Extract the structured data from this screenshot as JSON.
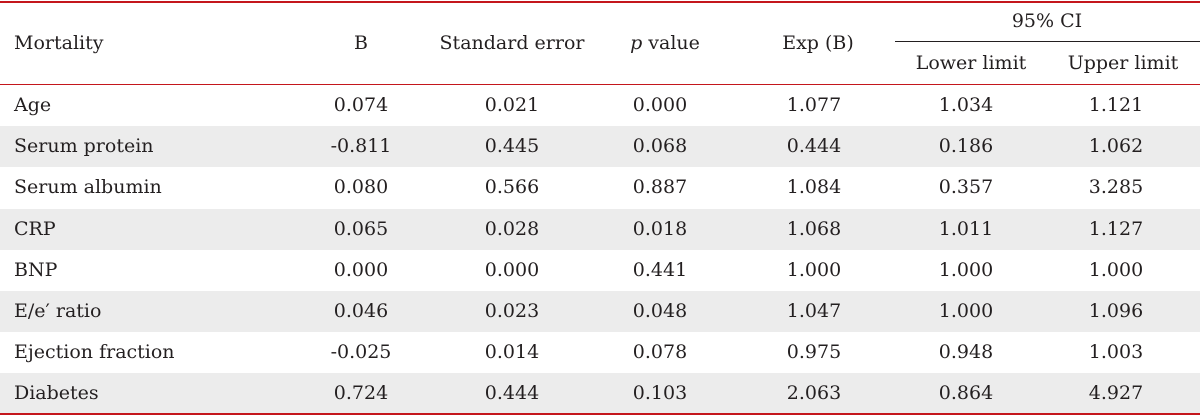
{
  "table": {
    "headers": {
      "label": "Mortality",
      "b": "B",
      "se": "Standard error",
      "p_italic": "p",
      "p_rest": " value",
      "expb": "Exp (B)",
      "ci": "95% CI",
      "lower": "Lower limit",
      "upper": "Upper limit"
    },
    "rows": [
      {
        "label": "Age",
        "b": "0.074",
        "se": "0.021",
        "p": "0.000",
        "expb": "1.077",
        "lower": "1.034",
        "upper": "1.121"
      },
      {
        "label": "Serum protein",
        "b": "-0.811",
        "se": "0.445",
        "p": "0.068",
        "expb": "0.444",
        "lower": "0.186",
        "upper": "1.062"
      },
      {
        "label": "Serum albumin",
        "b": "0.080",
        "se": "0.566",
        "p": "0.887",
        "expb": "1.084",
        "lower": "0.357",
        "upper": "3.285"
      },
      {
        "label": "CRP",
        "b": "0.065",
        "se": "0.028",
        "p": "0.018",
        "expb": "1.068",
        "lower": "1.011",
        "upper": "1.127"
      },
      {
        "label": "BNP",
        "b": "0.000",
        "se": "0.000",
        "p": "0.441",
        "expb": "1.000",
        "lower": "1.000",
        "upper": "1.000"
      },
      {
        "label": "E/e′ ratio",
        "b": "0.046",
        "se": "0.023",
        "p": "0.048",
        "expb": "1.047",
        "lower": "1.000",
        "upper": "1.096"
      },
      {
        "label": "Ejection fraction",
        "b": "-0.025",
        "se": "0.014",
        "p": "0.078",
        "expb": "0.975",
        "lower": "0.948",
        "upper": "1.003"
      },
      {
        "label": "Diabetes",
        "b": "0.724",
        "se": "0.444",
        "p": "0.103",
        "expb": "2.063",
        "lower": "0.864",
        "upper": "4.927"
      }
    ]
  }
}
